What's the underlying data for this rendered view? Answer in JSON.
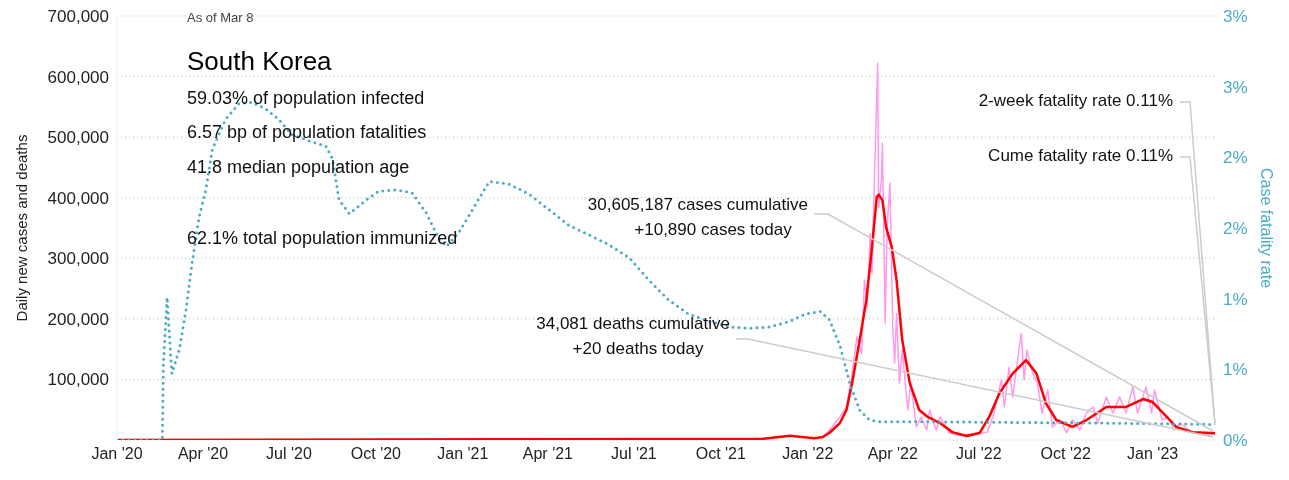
{
  "chart_data": {
    "type": "line",
    "title": "South Korea",
    "subtitle": "As of Mar 8",
    "ylabel": "Daily new cases and deaths",
    "y2label": "Case fatality rate",
    "xlim": [
      "2020-01-01",
      "2023-03-08"
    ],
    "xticks": [
      {
        "value": "2020-01",
        "label": "Jan '20"
      },
      {
        "value": "2020-04",
        "label": "Apr '20"
      },
      {
        "value": "2020-07",
        "label": "Jul '20"
      },
      {
        "value": "2020-10",
        "label": "Oct '20"
      },
      {
        "value": "2021-01",
        "label": "Jan '21"
      },
      {
        "value": "2021-04",
        "label": "Apr '21"
      },
      {
        "value": "2021-07",
        "label": "Jul '21"
      },
      {
        "value": "2021-10",
        "label": "Oct '21"
      },
      {
        "value": "2022-01",
        "label": "Jan '22"
      },
      {
        "value": "2022-04",
        "label": "Apr '22"
      },
      {
        "value": "2022-07",
        "label": "Jul '22"
      },
      {
        "value": "2022-10",
        "label": "Oct '22"
      },
      {
        "value": "2023-01",
        "label": "Jan '23"
      }
    ],
    "ylim": [
      0,
      700000
    ],
    "yticks": [
      {
        "value": 0,
        "label": null
      },
      {
        "value": 100000,
        "label": "100,000"
      },
      {
        "value": 200000,
        "label": "200,000"
      },
      {
        "value": 300000,
        "label": "300,000"
      },
      {
        "value": 400000,
        "label": "400,000"
      },
      {
        "value": 500000,
        "label": "500,000"
      },
      {
        "value": 600000,
        "label": "600,000"
      },
      {
        "value": 700000,
        "label": "700,000"
      }
    ],
    "y2lim": [
      0,
      3
    ],
    "y2ticks": [
      {
        "value": 0,
        "label": "0%"
      },
      {
        "value": 0.5,
        "label": "1%"
      },
      {
        "value": 1,
        "label": "1%"
      },
      {
        "value": 1.5,
        "label": "2%"
      },
      {
        "value": 2,
        "label": "2%"
      },
      {
        "value": 2.5,
        "label": "3%"
      },
      {
        "value": 3,
        "label": "3%"
      }
    ],
    "grid": "y",
    "series": [
      {
        "color": "#ff99ee",
        "x": [
          "2022-01-17",
          "2022-01-24",
          "2022-02-04",
          "2022-02-11",
          "2022-02-17",
          "2022-02-22",
          "2022-02-27",
          "2022-03-02",
          "2022-03-05",
          "2022-03-08",
          "2022-03-10",
          "2022-03-12",
          "2022-03-16",
          "2022-03-17",
          "2022-03-20",
          "2022-03-21",
          "2022-03-24",
          "2022-03-26",
          "2022-03-29",
          "2022-04-01",
          "2022-04-03",
          "2022-04-05",
          "2022-04-08",
          "2022-04-11",
          "2022-04-17",
          "2022-04-20",
          "2022-04-26",
          "2022-05-01",
          "2022-05-07",
          "2022-05-10",
          "2022-05-17",
          "2022-05-21",
          "2022-05-31",
          "2022-06-11",
          "2022-07-10",
          "2022-07-16",
          "2022-07-25",
          "2022-07-28",
          "2022-08-02",
          "2022-08-06",
          "2022-08-11",
          "2022-08-15",
          "2022-08-18",
          "2022-08-21",
          "2022-08-27",
          "2022-09-01",
          "2022-09-06",
          "2022-09-12",
          "2022-09-17",
          "2022-09-25",
          "2022-10-02",
          "2022-10-08",
          "2022-10-16",
          "2022-10-23",
          "2022-10-30",
          "2022-11-04",
          "2022-11-13",
          "2022-11-20",
          "2022-11-27",
          "2022-12-04",
          "2022-12-11",
          "2022-12-16",
          "2022-12-25",
          "2022-12-31",
          "2023-01-03",
          "2023-01-11",
          "2023-01-17",
          "2023-01-24",
          "2023-01-30",
          "2023-02-12",
          "2023-03-02",
          "2023-03-08"
        ],
        "values": [
          5000,
          16500,
          38000,
          54500,
          110000,
          170000,
          143000,
          264000,
          219000,
          341000,
          275000,
          401000,
          622000,
          384000,
          429000,
          490000,
          193000,
          351000,
          424000,
          186000,
          127000,
          209000,
          94000,
          148000,
          49500,
          94000,
          21500,
          38000,
          16500,
          49500,
          16500,
          38000,
          11600,
          8000,
          13000,
          38000,
          99000,
          54500,
          120000,
          71000,
          132000,
          176000,
          99000,
          148000,
          110000,
          94000,
          44500,
          82500,
          21500,
          33000,
          11600,
          33000,
          16500,
          44500,
          54500,
          28000,
          71000,
          44500,
          71000,
          44500,
          87500,
          44500,
          87500,
          44500,
          82500,
          33000,
          38000,
          16500,
          28000,
          11600,
          8000,
          10890
        ]
      },
      {
        "color": "#ff0000",
        "x": [
          "2020-01-01",
          "2021-11-15",
          "2021-12-13",
          "2022-01-08",
          "2022-01-17",
          "2022-01-24",
          "2022-02-04",
          "2022-02-11",
          "2022-02-17",
          "2022-02-25",
          "2022-03-04",
          "2022-03-10",
          "2022-03-15",
          "2022-03-17",
          "2022-03-21",
          "2022-03-25",
          "2022-03-31",
          "2022-04-05",
          "2022-04-11",
          "2022-04-19",
          "2022-04-29",
          "2022-05-08",
          "2022-05-21",
          "2022-06-03",
          "2022-06-18",
          "2022-07-02",
          "2022-07-12",
          "2022-07-23",
          "2022-08-06",
          "2022-08-20",
          "2022-08-31",
          "2022-09-10",
          "2022-09-21",
          "2022-10-08",
          "2022-10-23",
          "2022-11-13",
          "2022-12-04",
          "2022-12-22",
          "2023-01-01",
          "2023-01-16",
          "2023-01-26",
          "2023-02-12",
          "2023-03-05",
          "2023-03-08"
        ],
        "values": [
          0,
          2000,
          7000,
          3000,
          5000,
          12000,
          28000,
          49500,
          94000,
          165000,
          231000,
          318000,
          401000,
          405000,
          396000,
          351000,
          318000,
          264000,
          165000,
          94000,
          49500,
          38000,
          28000,
          13000,
          6600,
          11600,
          38000,
          77600,
          110000,
          132000,
          110000,
          61000,
          33000,
          21500,
          33000,
          54500,
          54500,
          67600,
          62700,
          38000,
          21500,
          13000,
          11600,
          11000
        ]
      },
      {
        "color": "#4bacc6",
        "axis": "y2",
        "line_style": "dotted",
        "x": [
          "2020-01-01",
          "2020-02-18",
          "2020-02-19",
          "2020-02-23",
          "2020-02-28",
          "2020-03-07",
          "2020-03-14",
          "2020-03-20",
          "2020-03-28",
          "2020-04-04",
          "2020-04-11",
          "2020-04-25",
          "2020-05-09",
          "2020-05-23",
          "2020-06-07",
          "2020-06-20",
          "2020-07-04",
          "2020-07-25",
          "2020-08-09",
          "2020-08-16",
          "2020-08-23",
          "2020-09-03",
          "2020-09-21",
          "2020-10-04",
          "2020-10-22",
          "2020-11-08",
          "2020-11-23",
          "2020-12-07",
          "2020-12-15",
          "2020-12-28",
          "2021-01-29",
          "2021-02-19",
          "2021-03-12",
          "2021-04-02",
          "2021-04-23",
          "2021-05-15",
          "2021-06-05",
          "2021-06-26",
          "2021-07-17",
          "2021-08-07",
          "2021-08-28",
          "2021-09-19",
          "2021-10-10",
          "2021-10-31",
          "2021-11-22",
          "2021-12-13",
          "2021-12-29",
          "2022-01-14",
          "2022-01-24",
          "2022-02-04",
          "2022-02-15",
          "2022-02-25",
          "2022-03-08",
          "2022-03-18",
          "2022-04-09",
          "2022-11-06",
          "2023-03-08"
        ],
        "values": [
          0,
          0,
          0.52,
          1.01,
          0.47,
          0.64,
          0.92,
          1.23,
          1.58,
          1.77,
          2.06,
          2.27,
          2.38,
          2.39,
          2.34,
          2.27,
          2.16,
          2.11,
          2.08,
          1.99,
          1.7,
          1.6,
          1.7,
          1.76,
          1.77,
          1.75,
          1.61,
          1.42,
          1.37,
          1.47,
          1.83,
          1.81,
          1.74,
          1.63,
          1.52,
          1.45,
          1.38,
          1.29,
          1.13,
          0.99,
          0.89,
          0.84,
          0.8,
          0.79,
          0.8,
          0.84,
          0.89,
          0.91,
          0.85,
          0.67,
          0.39,
          0.21,
          0.14,
          0.13,
          0.13,
          0.12,
          0.11
        ]
      }
    ],
    "annotations": [
      "59.03% of population infected",
      "6.57 bp of population fatalities",
      "41.8 median population age",
      "62.1% total population immunized",
      "30,605,187 cases cumulative",
      "+10,890 cases today",
      "34,081 deaths cumulative",
      "+20 deaths today",
      {
        "text": "2-week fatality rate 0.11%",
        "x": "2023-03-08",
        "y": 25000
      },
      {
        "text": "Cume fatality rate 0.11%",
        "x": "2023-03-08",
        "y": 25000
      }
    ]
  }
}
